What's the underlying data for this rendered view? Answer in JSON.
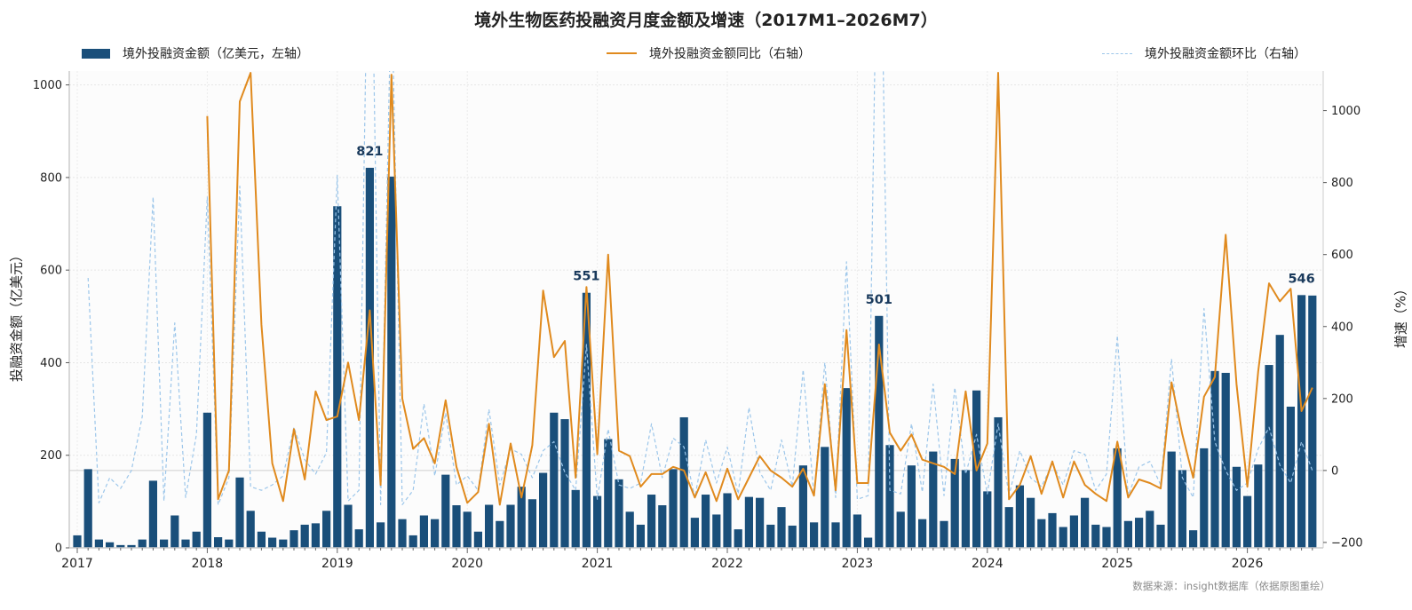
{
  "chart_data": {
    "type": "bar+line",
    "title": "境外生物医药投融资月度金额及增速（2017M1–2026M7）",
    "ylabel_left": "投融资金额（亿美元）",
    "ylabel_right": "增速（%）",
    "ylim_left": [
      0,
      1030
    ],
    "ylim_right": [
      -215,
      1110
    ],
    "yticks_left": [
      0,
      200,
      400,
      600,
      800,
      1000
    ],
    "yticks_right": [
      -200,
      0,
      200,
      400,
      600,
      800,
      1000
    ],
    "x_tick_labels": [
      "2017",
      "2018",
      "2019",
      "2020",
      "2021",
      "2022",
      "2023",
      "2024",
      "2025",
      "2026"
    ],
    "start_month": "2017-01",
    "grid": true,
    "legend_position": "top",
    "source": "数据来源：insight数据库（依据原图重绘）",
    "colors": {
      "bar": "#1a4f7a",
      "yoy": "#e08a1e",
      "mom": "#9cc6ea",
      "label": "#1a3a5c"
    },
    "series": [
      {
        "name": "境外投融资金额（亿美元，左轴）",
        "type": "bar",
        "axis": "left",
        "values": [
          27,
          170,
          18,
          12,
          6,
          6,
          18,
          145,
          18,
          70,
          18,
          35,
          292,
          23,
          18,
          152,
          80,
          35,
          22,
          18,
          38,
          50,
          53,
          80,
          738,
          93,
          40,
          821,
          55,
          802,
          62,
          27,
          70,
          62,
          158,
          92,
          78,
          35,
          93,
          58,
          93,
          132,
          105,
          162,
          292,
          278,
          125,
          551,
          112,
          235,
          148,
          78,
          50,
          115,
          92,
          170,
          282,
          65,
          115,
          72,
          118,
          40,
          110,
          108,
          50,
          88,
          48,
          178,
          55,
          218,
          55,
          345,
          72,
          22,
          501,
          222,
          78,
          178,
          62,
          208,
          58,
          192,
          168,
          340,
          122,
          282,
          88,
          135,
          108,
          62,
          75,
          45,
          70,
          108,
          50,
          45,
          215,
          58,
          65,
          80,
          50,
          208,
          168,
          38,
          215,
          382,
          378,
          175,
          112,
          180,
          395,
          460,
          305,
          546,
          545
        ]
      },
      {
        "name": "境外投融资金额同比（右轴）",
        "type": "line",
        "axis": "right",
        "values": [
          null,
          null,
          null,
          null,
          null,
          null,
          null,
          null,
          null,
          null,
          null,
          null,
          985,
          -80,
          0,
          1025,
          1105,
          405,
          20,
          -85,
          115,
          -25,
          220,
          140,
          150,
          300,
          140,
          445,
          -40,
          1100,
          200,
          60,
          90,
          20,
          195,
          10,
          -90,
          -60,
          130,
          -95,
          75,
          -75,
          70,
          500,
          315,
          360,
          -20,
          510,
          45,
          600,
          55,
          40,
          -45,
          -10,
          -10,
          10,
          0,
          -75,
          -5,
          -85,
          5,
          -80,
          -20,
          40,
          0,
          -20,
          -45,
          5,
          -70,
          240,
          -55,
          390,
          -35,
          -35,
          350,
          105,
          55,
          100,
          30,
          20,
          10,
          -10,
          220,
          0,
          75,
          1105,
          -80,
          -40,
          40,
          -65,
          25,
          -75,
          25,
          -40,
          -65,
          -85,
          80,
          -75,
          -25,
          -35,
          -50,
          245,
          100,
          -20,
          205,
          260,
          655,
          240,
          -45,
          275,
          520,
          470,
          505,
          165,
          230
        ]
      },
      {
        "name": "境外投融资金额环比（右轴）",
        "type": "line",
        "axis": "right",
        "values": [
          null,
          535,
          -90,
          -20,
          -50,
          0,
          150,
          760,
          -85,
          410,
          -75,
          100,
          760,
          -95,
          -20,
          790,
          -45,
          -55,
          -40,
          -15,
          120,
          30,
          -10,
          50,
          820,
          -85,
          -55,
          1850,
          -95,
          1370,
          -95,
          -55,
          185,
          -15,
          160,
          -40,
          -15,
          -55,
          170,
          -40,
          60,
          45,
          -20,
          55,
          80,
          -5,
          -55,
          350,
          -80,
          115,
          -40,
          -50,
          -35,
          130,
          -20,
          90,
          65,
          -75,
          85,
          -35,
          65,
          -65,
          175,
          -5,
          -55,
          85,
          -45,
          280,
          -70,
          300,
          -75,
          580,
          -80,
          -70,
          1880,
          -55,
          -65,
          130,
          -60,
          240,
          -70,
          230,
          -10,
          100,
          -65,
          130,
          -70,
          55,
          -20,
          -45,
          20,
          -40,
          55,
          45,
          -55,
          -10,
          375,
          -70,
          10,
          25,
          -40,
          310,
          -20,
          -75,
          450,
          80,
          0,
          -55,
          -35,
          60,
          120,
          15,
          -35,
          80,
          0
        ]
      }
    ],
    "annotations": [
      {
        "month_index": 27,
        "text": "821"
      },
      {
        "month_index": 47,
        "text": "551"
      },
      {
        "month_index": 74,
        "text": "501"
      },
      {
        "month_index": 113,
        "text": "546"
      }
    ]
  }
}
